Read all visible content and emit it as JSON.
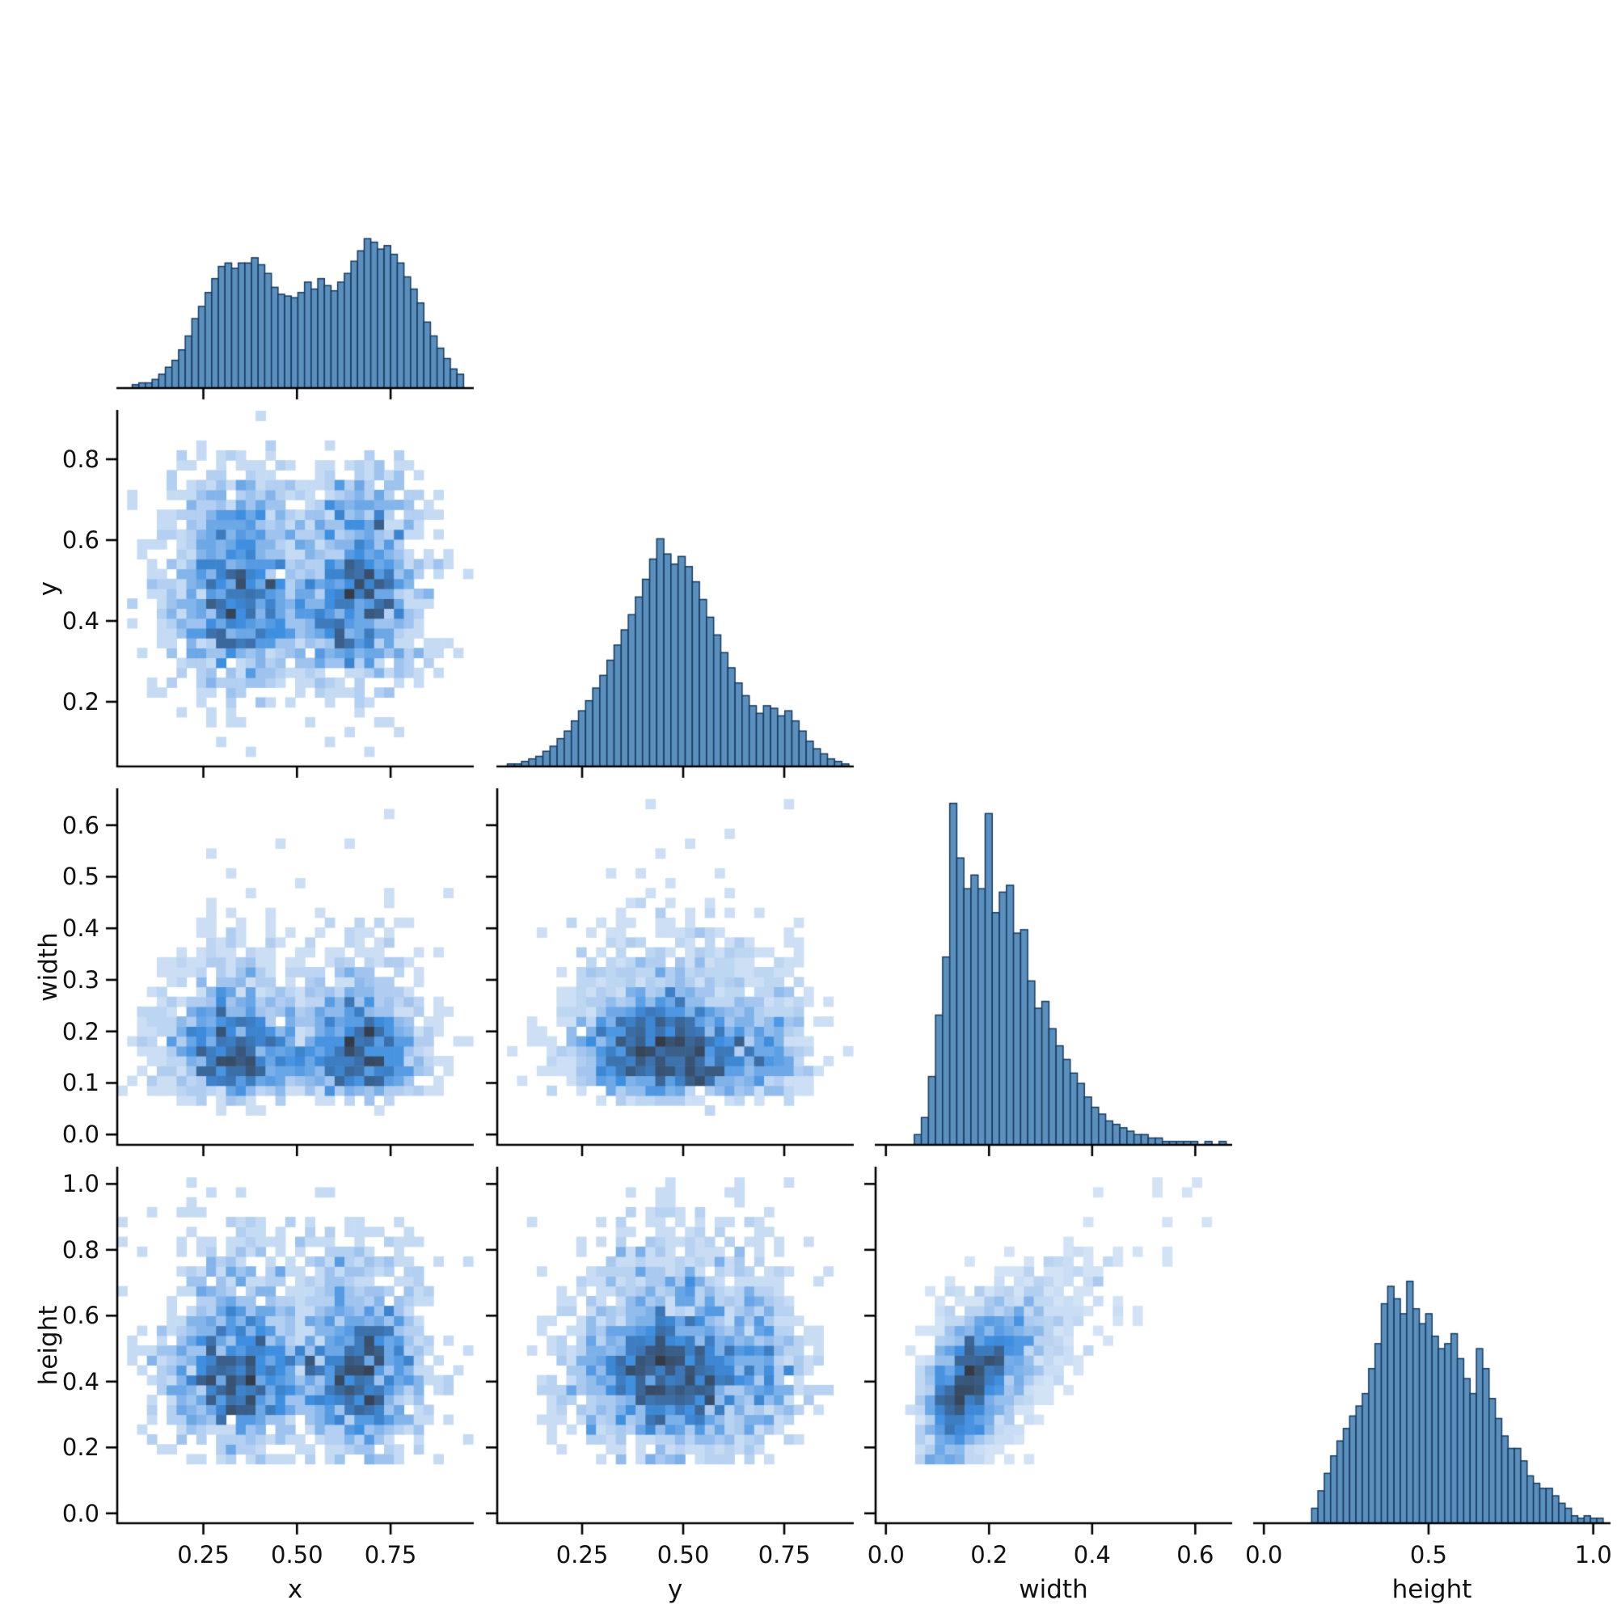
{
  "figure": {
    "background": "#ffffff",
    "bar_fill": "#5a8fbe",
    "bar_edge": "#17395a",
    "spine_color": "#000000",
    "tick_color": "#000000",
    "text_color": "#111111",
    "colormap": [
      {
        "t": 0.0,
        "c": "#e3edf8"
      },
      {
        "t": 0.25,
        "c": "#a9c9ef"
      },
      {
        "t": 0.5,
        "c": "#3e8ee0"
      },
      {
        "t": 0.75,
        "c": "#3a5a80"
      },
      {
        "t": 1.0,
        "c": "#343b46"
      }
    ],
    "colormap_gamma": 0.7
  },
  "chart_data": {
    "type": "heatmap",
    "subtype": "corner-pairplot",
    "variables": [
      "x",
      "y",
      "width",
      "height"
    ],
    "corner": true,
    "bottom_axis_labels": [
      "x",
      "y",
      "width",
      "height"
    ],
    "left_axis_labels": [
      "y",
      "width",
      "height"
    ],
    "panels": [
      {
        "kind": "histogram",
        "var": "x",
        "row": 0,
        "col": 0,
        "xlim": [
          0.02,
          0.97
        ],
        "bins": {
          "start": 0.06,
          "width": 0.0177,
          "counts": [
            2,
            3,
            3,
            5,
            8,
            12,
            16,
            22,
            30,
            40,
            47,
            55,
            63,
            70,
            72,
            69,
            72,
            72,
            75,
            71,
            66,
            58,
            54,
            53,
            52,
            55,
            61,
            57,
            63,
            59,
            56,
            61,
            66,
            73,
            79,
            86,
            84,
            80,
            82,
            77,
            72,
            64,
            57,
            49,
            38,
            30,
            23,
            17,
            11,
            8
          ]
        },
        "height_frac": 0.42,
        "bottom_ticks": [
          {
            "v": 0.25,
            "label": "0.25"
          },
          {
            "v": 0.5,
            "label": "0.50"
          },
          {
            "v": 0.75,
            "label": "0.75"
          }
        ],
        "show_bottom_labels": false,
        "show_left_labels": false,
        "xlabel": null,
        "ylabel": null
      },
      {
        "kind": "hist2d",
        "x_var": "x",
        "y_var": "y",
        "row": 1,
        "col": 0,
        "xlim": [
          0.02,
          0.97
        ],
        "ylim": [
          0.04,
          0.92
        ],
        "seed": 11,
        "n_points": 2400,
        "nbins": 36,
        "x_gen": {
          "type": "gmix",
          "components": [
            {
              "w": 0.5,
              "m": 0.335,
              "s": 0.095
            },
            {
              "w": 0.5,
              "m": 0.665,
              "s": 0.09
            }
          ],
          "clip": [
            0.04,
            0.95
          ]
        },
        "y_gen": {
          "type": "gmix",
          "components": [
            {
              "w": 0.85,
              "m": 0.455,
              "s": 0.115
            },
            {
              "w": 0.15,
              "m": 0.685,
              "s": 0.065
            }
          ],
          "clip": [
            0.06,
            0.9
          ]
        },
        "bottom_ticks": [
          {
            "v": 0.25,
            "label": "0.25"
          },
          {
            "v": 0.5,
            "label": "0.50"
          },
          {
            "v": 0.75,
            "label": "0.75"
          }
        ],
        "left_ticks": [
          {
            "v": 0.2,
            "label": "0.2"
          },
          {
            "v": 0.4,
            "label": "0.4"
          },
          {
            "v": 0.6,
            "label": "0.6"
          },
          {
            "v": 0.8,
            "label": "0.8"
          }
        ],
        "show_bottom_labels": false,
        "show_left_labels": true,
        "xlabel": null,
        "ylabel": "y"
      },
      {
        "kind": "histogram",
        "var": "y",
        "row": 1,
        "col": 1,
        "xlim": [
          0.04,
          0.92
        ],
        "bins": {
          "start": 0.065,
          "width": 0.0176,
          "counts": [
            1,
            1,
            2,
            3,
            4,
            6,
            8,
            11,
            14,
            18,
            22,
            26,
            31,
            36,
            42,
            48,
            54,
            60,
            67,
            74,
            82,
            90,
            84,
            80,
            83,
            79,
            73,
            66,
            59,
            52,
            45,
            39,
            33,
            28,
            24,
            21,
            24,
            23,
            20,
            22,
            18,
            14,
            10,
            7,
            5,
            3,
            2,
            1
          ]
        },
        "height_frac": 0.64,
        "bottom_ticks": [
          {
            "v": 0.25,
            "label": "0.25"
          },
          {
            "v": 0.5,
            "label": "0.50"
          },
          {
            "v": 0.75,
            "label": "0.75"
          }
        ],
        "show_bottom_labels": false,
        "show_left_labels": false,
        "xlabel": null,
        "ylabel": null
      },
      {
        "kind": "hist2d",
        "x_var": "x",
        "y_var": "width",
        "row": 2,
        "col": 0,
        "xlim": [
          0.02,
          0.97
        ],
        "ylim": [
          -0.02,
          0.67
        ],
        "seed": 22,
        "n_points": 2400,
        "nbins": 36,
        "x_gen": {
          "type": "gmix",
          "components": [
            {
              "w": 0.5,
              "m": 0.335,
              "s": 0.095
            },
            {
              "w": 0.5,
              "m": 0.665,
              "s": 0.09
            }
          ],
          "clip": [
            0.04,
            0.95
          ]
        },
        "y_gen": {
          "type": "lognorm",
          "mu": -1.74,
          "sigma": 0.38,
          "clip": [
            0.04,
            0.65
          ]
        },
        "bottom_ticks": [
          {
            "v": 0.25,
            "label": "0.25"
          },
          {
            "v": 0.5,
            "label": "0.50"
          },
          {
            "v": 0.75,
            "label": "0.75"
          }
        ],
        "left_ticks": [
          {
            "v": 0.0,
            "label": "0.0"
          },
          {
            "v": 0.1,
            "label": "0.1"
          },
          {
            "v": 0.2,
            "label": "0.2"
          },
          {
            "v": 0.3,
            "label": "0.3"
          },
          {
            "v": 0.4,
            "label": "0.4"
          },
          {
            "v": 0.5,
            "label": "0.5"
          },
          {
            "v": 0.6,
            "label": "0.6"
          }
        ],
        "show_bottom_labels": false,
        "show_left_labels": true,
        "xlabel": null,
        "ylabel": "width"
      },
      {
        "kind": "hist2d",
        "x_var": "y",
        "y_var": "width",
        "row": 2,
        "col": 1,
        "xlim": [
          0.04,
          0.92
        ],
        "ylim": [
          -0.02,
          0.67
        ],
        "seed": 33,
        "n_points": 2400,
        "nbins": 36,
        "x_gen": {
          "type": "gmix",
          "components": [
            {
              "w": 0.85,
              "m": 0.455,
              "s": 0.115
            },
            {
              "w": 0.15,
              "m": 0.685,
              "s": 0.065
            }
          ],
          "clip": [
            0.06,
            0.9
          ]
        },
        "y_gen": {
          "type": "lognorm",
          "mu": -1.74,
          "sigma": 0.38,
          "clip": [
            0.04,
            0.65
          ]
        },
        "bottom_ticks": [
          {
            "v": 0.25,
            "label": "0.25"
          },
          {
            "v": 0.5,
            "label": "0.50"
          },
          {
            "v": 0.75,
            "label": "0.75"
          }
        ],
        "left_ticks": [
          {
            "v": 0.0,
            "label": "0.0"
          },
          {
            "v": 0.1,
            "label": "0.1"
          },
          {
            "v": 0.2,
            "label": "0.2"
          },
          {
            "v": 0.3,
            "label": "0.3"
          },
          {
            "v": 0.4,
            "label": "0.4"
          },
          {
            "v": 0.5,
            "label": "0.5"
          },
          {
            "v": 0.6,
            "label": "0.6"
          }
        ],
        "show_bottom_labels": false,
        "show_left_labels": false,
        "xlabel": null,
        "ylabel": null
      },
      {
        "kind": "histogram",
        "var": "width",
        "row": 2,
        "col": 2,
        "xlim": [
          -0.02,
          0.67
        ],
        "bins": {
          "start": 0.055,
          "width": 0.01375,
          "counts": [
            3,
            8,
            20,
            38,
            55,
            100,
            84,
            75,
            79,
            75,
            97,
            68,
            74,
            76,
            62,
            63,
            48,
            40,
            42,
            34,
            29,
            25,
            21,
            18,
            14,
            11,
            9,
            7,
            6,
            5,
            4,
            3,
            3,
            2,
            2,
            1,
            1,
            1,
            1,
            1,
            0,
            1,
            0,
            1
          ]
        },
        "height_frac": 0.96,
        "bottom_ticks": [
          {
            "v": 0.0,
            "label": "0.0"
          },
          {
            "v": 0.2,
            "label": "0.2"
          },
          {
            "v": 0.4,
            "label": "0.4"
          },
          {
            "v": 0.6,
            "label": "0.6"
          }
        ],
        "show_bottom_labels": false,
        "show_left_labels": false,
        "xlabel": null,
        "ylabel": null
      },
      {
        "kind": "hist2d",
        "x_var": "x",
        "y_var": "height",
        "row": 3,
        "col": 0,
        "xlim": [
          0.02,
          0.97
        ],
        "ylim": [
          -0.03,
          1.05
        ],
        "seed": 44,
        "n_points": 2400,
        "nbins": 36,
        "x_gen": {
          "type": "gmix",
          "components": [
            {
              "w": 0.5,
              "m": 0.335,
              "s": 0.095
            },
            {
              "w": 0.5,
              "m": 0.665,
              "s": 0.09
            }
          ],
          "clip": [
            0.04,
            0.95
          ]
        },
        "y_gen": {
          "type": "gmix",
          "components": [
            {
              "w": 0.6,
              "m": 0.4,
              "s": 0.1
            },
            {
              "w": 0.4,
              "m": 0.555,
              "s": 0.165
            }
          ],
          "clip": [
            0.15,
            1.0
          ]
        },
        "bottom_ticks": [
          {
            "v": 0.25,
            "label": "0.25"
          },
          {
            "v": 0.5,
            "label": "0.50"
          },
          {
            "v": 0.75,
            "label": "0.75"
          }
        ],
        "left_ticks": [
          {
            "v": 0.0,
            "label": "0.0"
          },
          {
            "v": 0.2,
            "label": "0.2"
          },
          {
            "v": 0.4,
            "label": "0.4"
          },
          {
            "v": 0.6,
            "label": "0.6"
          },
          {
            "v": 0.8,
            "label": "0.8"
          },
          {
            "v": 1.0,
            "label": "1.0"
          }
        ],
        "show_bottom_labels": true,
        "show_left_labels": true,
        "xlabel": "x",
        "ylabel": "height"
      },
      {
        "kind": "hist2d",
        "x_var": "y",
        "y_var": "height",
        "row": 3,
        "col": 1,
        "xlim": [
          0.04,
          0.92
        ],
        "ylim": [
          -0.03,
          1.05
        ],
        "seed": 55,
        "n_points": 2400,
        "nbins": 36,
        "x_gen": {
          "type": "gmix",
          "components": [
            {
              "w": 0.85,
              "m": 0.455,
              "s": 0.115
            },
            {
              "w": 0.15,
              "m": 0.685,
              "s": 0.065
            }
          ],
          "clip": [
            0.06,
            0.9
          ]
        },
        "y_gen": {
          "type": "gmix",
          "components": [
            {
              "w": 0.6,
              "m": 0.4,
              "s": 0.1
            },
            {
              "w": 0.4,
              "m": 0.555,
              "s": 0.165
            }
          ],
          "clip": [
            0.15,
            1.0
          ]
        },
        "bottom_ticks": [
          {
            "v": 0.25,
            "label": "0.25"
          },
          {
            "v": 0.5,
            "label": "0.50"
          },
          {
            "v": 0.75,
            "label": "0.75"
          }
        ],
        "left_ticks": [
          {
            "v": 0.0,
            "label": "0.0"
          },
          {
            "v": 0.2,
            "label": "0.2"
          },
          {
            "v": 0.4,
            "label": "0.4"
          },
          {
            "v": 0.6,
            "label": "0.6"
          },
          {
            "v": 0.8,
            "label": "0.8"
          },
          {
            "v": 1.0,
            "label": "1.0"
          }
        ],
        "show_bottom_labels": true,
        "show_left_labels": false,
        "xlabel": "y",
        "ylabel": null
      },
      {
        "kind": "hist2d",
        "x_var": "width",
        "y_var": "height",
        "row": 3,
        "col": 2,
        "xlim": [
          -0.02,
          0.67
        ],
        "ylim": [
          -0.03,
          1.05
        ],
        "seed": 66,
        "n_points": 2400,
        "nbins": 36,
        "x_gen": {
          "type": "lognorm",
          "mu": -1.74,
          "sigma": 0.38,
          "clip": [
            0.04,
            0.65
          ]
        },
        "y_gen": {
          "type": "linear",
          "a": 0.21,
          "b": 1.15,
          "noise": 0.105,
          "clip": [
            0.15,
            1.0
          ]
        },
        "bottom_ticks": [
          {
            "v": 0.0,
            "label": "0.0"
          },
          {
            "v": 0.2,
            "label": "0.2"
          },
          {
            "v": 0.4,
            "label": "0.4"
          },
          {
            "v": 0.6,
            "label": "0.6"
          }
        ],
        "left_ticks": [
          {
            "v": 0.0,
            "label": "0.0"
          },
          {
            "v": 0.2,
            "label": "0.2"
          },
          {
            "v": 0.4,
            "label": "0.4"
          },
          {
            "v": 0.6,
            "label": "0.6"
          },
          {
            "v": 0.8,
            "label": "0.8"
          },
          {
            "v": 1.0,
            "label": "1.0"
          }
        ],
        "show_bottom_labels": true,
        "show_left_labels": false,
        "xlabel": "width",
        "ylabel": null
      },
      {
        "kind": "histogram",
        "var": "height",
        "row": 3,
        "col": 3,
        "xlim": [
          -0.03,
          1.05
        ],
        "bins": {
          "start": 0.145,
          "width": 0.01924,
          "counts": [
            6,
            13,
            20,
            27,
            33,
            38,
            43,
            47,
            52,
            62,
            72,
            88,
            95,
            90,
            84,
            97,
            86,
            80,
            84,
            75,
            70,
            72,
            76,
            66,
            58,
            52,
            70,
            62,
            50,
            42,
            35,
            30,
            30,
            25,
            19,
            16,
            14,
            14,
            11,
            8,
            6,
            3,
            2,
            3,
            2,
            2
          ]
        },
        "height_frac": 0.68,
        "bottom_ticks": [
          {
            "v": 0.0,
            "label": "0.0"
          },
          {
            "v": 0.5,
            "label": "0.5"
          },
          {
            "v": 1.0,
            "label": "1.0"
          }
        ],
        "show_bottom_labels": true,
        "show_left_labels": false,
        "xlabel": "height",
        "ylabel": null
      }
    ]
  }
}
